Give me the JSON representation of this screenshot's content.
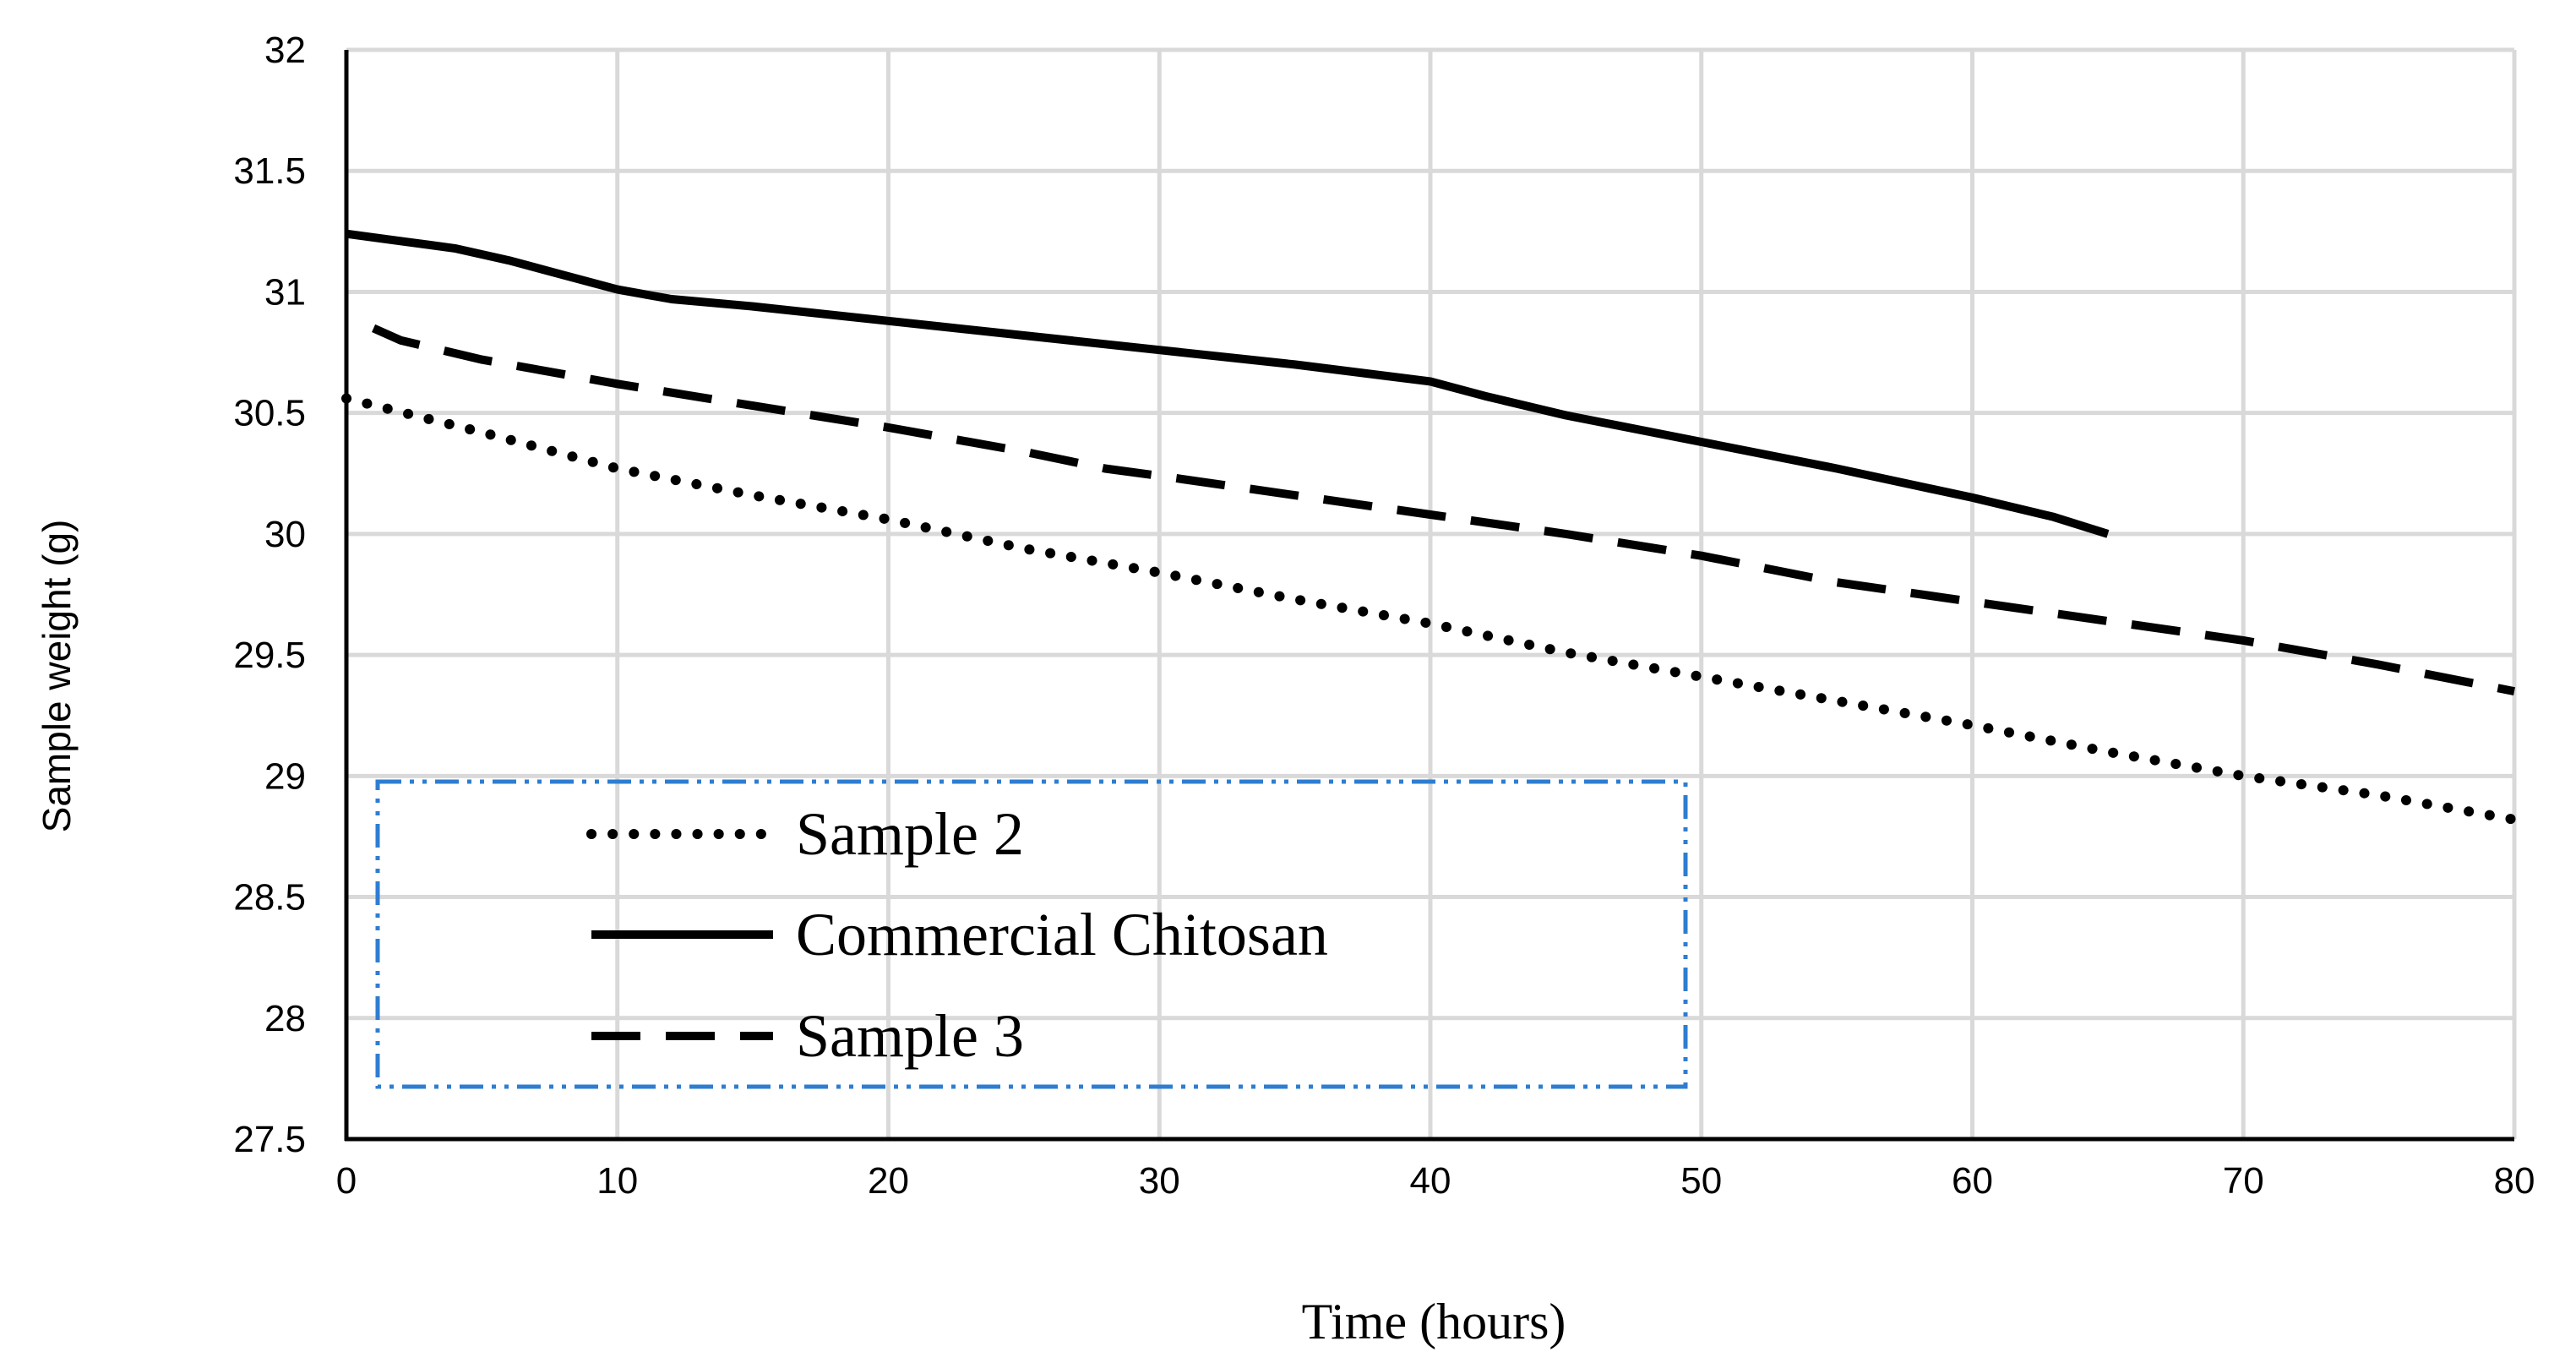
{
  "chart_data": {
    "type": "line",
    "title": "",
    "xlabel": "Time (hours)",
    "ylabel": "Sample weight (g)",
    "xlim": [
      0,
      80
    ],
    "ylim": [
      27.5,
      32
    ],
    "xticks": [
      0,
      10,
      20,
      30,
      40,
      50,
      60,
      70,
      80
    ],
    "yticks": [
      27.5,
      28,
      28.5,
      29,
      29.5,
      30,
      30.5,
      31,
      31.5,
      32
    ],
    "xtick_labels": [
      "0",
      "10",
      "20",
      "30",
      "40",
      "50",
      "60",
      "70",
      "80"
    ],
    "ytick_labels": [
      "27.5",
      "28",
      "28.5",
      "29",
      "29.5",
      "30",
      "30.5",
      "31",
      "31.5",
      "32"
    ],
    "grid": true,
    "legend_position": "bottom-left",
    "series": [
      {
        "name": "Sample 2",
        "style": "dotted",
        "color": "#000000",
        "x": [
          0,
          5,
          10,
          15,
          20,
          25,
          30,
          35,
          40,
          45,
          50,
          55,
          60,
          65,
          70,
          75,
          80
        ],
        "y": [
          30.56,
          30.42,
          30.27,
          30.16,
          30.06,
          29.94,
          29.84,
          29.73,
          29.63,
          29.51,
          29.41,
          29.31,
          29.21,
          29.1,
          29.0,
          28.92,
          28.82
        ]
      },
      {
        "name": "Commercial Chitosan",
        "style": "solid",
        "color": "#000000",
        "x": [
          0,
          2,
          4,
          6,
          8,
          10,
          12,
          15,
          20,
          25,
          30,
          35,
          40,
          42,
          45,
          50,
          55,
          60,
          63,
          65
        ],
        "y": [
          31.24,
          31.21,
          31.18,
          31.13,
          31.07,
          31.01,
          30.97,
          30.94,
          30.88,
          30.82,
          30.76,
          30.7,
          30.63,
          30.57,
          30.49,
          30.38,
          30.27,
          30.15,
          30.07,
          30.0
        ]
      },
      {
        "name": "Sample 3",
        "style": "dashed",
        "color": "#000000",
        "x": [
          1,
          2,
          5,
          10,
          15,
          20,
          25,
          28,
          30,
          35,
          40,
          45,
          50,
          55,
          60,
          65,
          70,
          75,
          80
        ],
        "y": [
          30.85,
          30.8,
          30.72,
          30.62,
          30.53,
          30.44,
          30.34,
          30.27,
          30.24,
          30.16,
          30.08,
          30.0,
          29.91,
          29.8,
          29.72,
          29.64,
          29.56,
          29.46,
          29.35
        ]
      }
    ]
  },
  "colors": {
    "legend_border": "#2e7dd1",
    "grid": "#d9d9d9",
    "axis": "#000000"
  }
}
